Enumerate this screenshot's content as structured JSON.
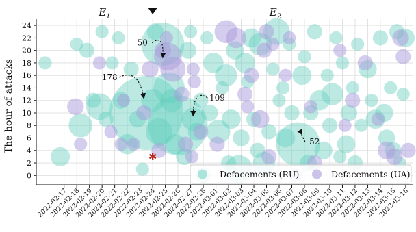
{
  "chart_data": {
    "type": "scatter",
    "ylabel": "The hour of attacks",
    "xlabel": "",
    "categories": [
      "2022-02-17",
      "2022-02-18",
      "2022-02-19",
      "2022-02-20",
      "2022-02-21",
      "2022-02-22",
      "2022-02-23",
      "2022-02-24",
      "2022-02-25",
      "2022-02-26",
      "2022-02-27",
      "2022-02-28",
      "2022-03-01",
      "2022-03-02",
      "2022-03-03",
      "2022-03-04",
      "2022-03-05",
      "2022-03-06",
      "2022-03-07",
      "2022-03-08",
      "2022-03-09",
      "2022-03-10",
      "2022-03-11",
      "2022-03-12",
      "2022-03-13",
      "2022-03-14",
      "2022-03-15",
      "2022-03-16"
    ],
    "ylim": [
      -1.5,
      25
    ],
    "yticks": [
      0,
      2,
      4,
      6,
      8,
      10,
      12,
      14,
      16,
      18,
      20,
      22,
      24
    ],
    "grid": true,
    "legend_position": "bottom-right",
    "colors": {
      "RU": "#5fcdbd",
      "UA": "#a99bdc",
      "star": "#c0271e",
      "marker": "#111111"
    },
    "series": [
      {
        "name": "Defacements (RU)",
        "color": "#5fcdbd",
        "points": [
          {
            "x": -1.5,
            "y": 18,
            "n": 1
          },
          {
            "x": -0.3,
            "y": 3,
            "n": 5
          },
          {
            "x": 1,
            "y": 21,
            "n": 1
          },
          {
            "x": 1.3,
            "y": 8,
            "n": 10
          },
          {
            "x": 1.8,
            "y": 20,
            "n": 2
          },
          {
            "x": 2.3,
            "y": 12,
            "n": 2
          },
          {
            "x": 2.8,
            "y": 11,
            "n": 14
          },
          {
            "x": 3,
            "y": 23,
            "n": 1
          },
          {
            "x": 3.3,
            "y": 9,
            "n": 2
          },
          {
            "x": 3.8,
            "y": 18,
            "n": 1
          },
          {
            "x": 4.3,
            "y": 22,
            "n": 1
          },
          {
            "x": 4.5,
            "y": 12,
            "n": 3
          },
          {
            "x": 5,
            "y": 5,
            "n": 6
          },
          {
            "x": 5.3,
            "y": 17,
            "n": 2
          },
          {
            "x": 5.8,
            "y": 9,
            "n": 3
          },
          {
            "x": 6.2,
            "y": 1,
            "n": 1
          },
          {
            "x": 6.5,
            "y": 10,
            "n": 178
          },
          {
            "x": 7,
            "y": 12,
            "n": 9
          },
          {
            "x": 7.2,
            "y": 23,
            "n": 3
          },
          {
            "x": 7.5,
            "y": 7,
            "n": 14
          },
          {
            "x": 7.8,
            "y": 21,
            "n": 50
          },
          {
            "x": 8.3,
            "y": 14,
            "n": 22
          },
          {
            "x": 8.5,
            "y": 12,
            "n": 9
          },
          {
            "x": 8.8,
            "y": 5,
            "n": 6
          },
          {
            "x": 9,
            "y": 8,
            "n": 109
          },
          {
            "x": 9.5,
            "y": 3,
            "n": 3
          },
          {
            "x": 9.8,
            "y": 20,
            "n": 3
          },
          {
            "x": 10,
            "y": 23,
            "n": 1
          },
          {
            "x": 10.2,
            "y": 9,
            "n": 9
          },
          {
            "x": 10.5,
            "y": 7,
            "n": 4
          },
          {
            "x": 10.8,
            "y": 12,
            "n": 2
          },
          {
            "x": 11,
            "y": 0,
            "n": 2
          },
          {
            "x": 11.3,
            "y": 22,
            "n": 1
          },
          {
            "x": 11.5,
            "y": 10,
            "n": 3
          },
          {
            "x": 11.8,
            "y": 18,
            "n": 6
          },
          {
            "x": 12.2,
            "y": 7,
            "n": 10
          },
          {
            "x": 12.5,
            "y": 14,
            "n": 1
          },
          {
            "x": 12.8,
            "y": 16,
            "n": 8
          },
          {
            "x": 13,
            "y": 2,
            "n": 2
          },
          {
            "x": 13.2,
            "y": 9,
            "n": 5
          },
          {
            "x": 13.5,
            "y": 20,
            "n": 4
          },
          {
            "x": 13.8,
            "y": 1,
            "n": 16
          },
          {
            "x": 14,
            "y": 6,
            "n": 3
          },
          {
            "x": 14.3,
            "y": 18,
            "n": 6
          },
          {
            "x": 14.5,
            "y": 15,
            "n": 1
          },
          {
            "x": 14.8,
            "y": 22,
            "n": 5
          },
          {
            "x": 15,
            "y": 9,
            "n": 2
          },
          {
            "x": 15.3,
            "y": 4,
            "n": 2
          },
          {
            "x": 15.5,
            "y": 21,
            "n": 9
          },
          {
            "x": 15.8,
            "y": 2,
            "n": 8
          },
          {
            "x": 16.2,
            "y": 7,
            "n": 2
          },
          {
            "x": 16.5,
            "y": 17,
            "n": 1
          },
          {
            "x": 16.8,
            "y": 23,
            "n": 14
          },
          {
            "x": 17,
            "y": 12,
            "n": 1
          },
          {
            "x": 17.3,
            "y": 14,
            "n": 1
          },
          {
            "x": 17.5,
            "y": 6,
            "n": 5
          },
          {
            "x": 17.8,
            "y": 21,
            "n": 1
          },
          {
            "x": 18,
            "y": 10,
            "n": 2
          },
          {
            "x": 18.5,
            "y": 5,
            "n": 52
          },
          {
            "x": 18.8,
            "y": 16,
            "n": 5
          },
          {
            "x": 19,
            "y": 19,
            "n": 1
          },
          {
            "x": 19.3,
            "y": 2,
            "n": 3
          },
          {
            "x": 19.5,
            "y": 10,
            "n": 2
          },
          {
            "x": 19.8,
            "y": 23,
            "n": 2
          },
          {
            "x": 20.2,
            "y": 12,
            "n": 6
          },
          {
            "x": 20.5,
            "y": 4,
            "n": 4
          },
          {
            "x": 20.8,
            "y": 16,
            "n": 1
          },
          {
            "x": 21,
            "y": 8,
            "n": 2
          },
          {
            "x": 21.2,
            "y": 13,
            "n": 8
          },
          {
            "x": 21.5,
            "y": 22,
            "n": 1
          },
          {
            "x": 21.8,
            "y": 3,
            "n": 1
          },
          {
            "x": 22,
            "y": 18,
            "n": 1
          },
          {
            "x": 22.3,
            "y": 5,
            "n": 4
          },
          {
            "x": 22.5,
            "y": 10,
            "n": 3
          },
          {
            "x": 22.8,
            "y": 14,
            "n": 1
          },
          {
            "x": 23,
            "y": 2,
            "n": 2
          },
          {
            "x": 23.2,
            "y": 21,
            "n": 1
          },
          {
            "x": 23.5,
            "y": 8,
            "n": 1
          },
          {
            "x": 24,
            "y": 17,
            "n": 4
          },
          {
            "x": 24.3,
            "y": 12,
            "n": 1
          },
          {
            "x": 24.6,
            "y": 9,
            "n": 5
          },
          {
            "x": 25,
            "y": 22,
            "n": 2
          },
          {
            "x": 25.3,
            "y": 10,
            "n": 4
          },
          {
            "x": 25.5,
            "y": 6,
            "n": 3
          },
          {
            "x": 25.8,
            "y": 14,
            "n": 1
          },
          {
            "x": 26,
            "y": 4,
            "n": 3
          },
          {
            "x": 26.3,
            "y": 23,
            "n": 2
          },
          {
            "x": 26.5,
            "y": 2,
            "n": 1
          },
          {
            "x": 26.8,
            "y": 13,
            "n": 1
          },
          {
            "x": 27,
            "y": 22,
            "n": 4
          }
        ]
      },
      {
        "name": "Defacements (UA)",
        "color": "#a99bdc",
        "points": [
          {
            "x": 0.9,
            "y": 11,
            "n": 3
          },
          {
            "x": 1.3,
            "y": 5,
            "n": 1
          },
          {
            "x": 2.8,
            "y": 18,
            "n": 1
          },
          {
            "x": 3.7,
            "y": 7,
            "n": 1
          },
          {
            "x": 4.5,
            "y": 5,
            "n": 1
          },
          {
            "x": 4.7,
            "y": 12,
            "n": 1
          },
          {
            "x": 5.5,
            "y": 5,
            "n": 1
          },
          {
            "x": 6.3,
            "y": 10,
            "n": 2
          },
          {
            "x": 6.8,
            "y": 17,
            "n": 3
          },
          {
            "x": 7.5,
            "y": 4,
            "n": 2
          },
          {
            "x": 7.8,
            "y": 20,
            "n": 3
          },
          {
            "x": 8.1,
            "y": 22,
            "n": 1
          },
          {
            "x": 8.2,
            "y": 19,
            "n": 16
          },
          {
            "x": 8.6,
            "y": 17,
            "n": 12
          },
          {
            "x": 9.3,
            "y": 13,
            "n": 2
          },
          {
            "x": 9.6,
            "y": 5,
            "n": 2
          },
          {
            "x": 10.1,
            "y": 3,
            "n": 1
          },
          {
            "x": 10.2,
            "y": 17,
            "n": 1
          },
          {
            "x": 10.3,
            "y": 15,
            "n": 1
          },
          {
            "x": 10.8,
            "y": 7,
            "n": 2
          },
          {
            "x": 12.1,
            "y": 5,
            "n": 2
          },
          {
            "x": 12.8,
            "y": 23,
            "n": 9
          },
          {
            "x": 13.6,
            "y": 22,
            "n": 6
          },
          {
            "x": 14.3,
            "y": 13,
            "n": 2
          },
          {
            "x": 14.5,
            "y": 11,
            "n": 1
          },
          {
            "x": 14.8,
            "y": 16,
            "n": 2
          },
          {
            "x": 15.5,
            "y": 9,
            "n": 4
          },
          {
            "x": 15.8,
            "y": 20,
            "n": 2
          },
          {
            "x": 16.0,
            "y": 23,
            "n": 2
          },
          {
            "x": 16.2,
            "y": 3,
            "n": 2
          },
          {
            "x": 16.5,
            "y": 21,
            "n": 1
          },
          {
            "x": 17.5,
            "y": 16,
            "n": 1
          },
          {
            "x": 17.8,
            "y": 22,
            "n": 1
          },
          {
            "x": 18.3,
            "y": 0,
            "n": 1
          },
          {
            "x": 19.5,
            "y": 11,
            "n": 1
          },
          {
            "x": 19.8,
            "y": 2,
            "n": 2
          },
          {
            "x": 21.8,
            "y": 20,
            "n": 1
          },
          {
            "x": 22.2,
            "y": 8,
            "n": 1
          },
          {
            "x": 22.8,
            "y": 12,
            "n": 2
          },
          {
            "x": 23.8,
            "y": 18,
            "n": 2
          },
          {
            "x": 24.8,
            "y": 9,
            "n": 1
          },
          {
            "x": 25.5,
            "y": 4,
            "n": 4
          },
          {
            "x": 26.1,
            "y": 3,
            "n": 3
          },
          {
            "x": 26.6,
            "y": 22,
            "n": 3
          },
          {
            "x": 26.8,
            "y": 19,
            "n": 2
          },
          {
            "x": 27.2,
            "y": 4,
            "n": 2
          }
        ]
      }
    ],
    "annotations": [
      {
        "text": "178",
        "target": {
          "x": 6.3,
          "y": 12.4
        },
        "label_at": {
          "x": 3.6,
          "y": 15.7
        }
      },
      {
        "text": "50",
        "target": {
          "x": 7.8,
          "y": 18.9
        },
        "label_at": {
          "x": 6.2,
          "y": 21.2
        }
      },
      {
        "text": "109",
        "target": {
          "x": 10.2,
          "y": 9.6
        },
        "label_at": {
          "x": 12.1,
          "y": 12.4
        }
      },
      {
        "text": "52",
        "target": {
          "x": 18.8,
          "y": 6.6
        },
        "label_at": {
          "x": 19.8,
          "y": 5.4
        }
      }
    ],
    "events": [
      {
        "label_base": "E",
        "label_sub": "1",
        "x": 3.2
      },
      {
        "label_base": "E",
        "label_sub": "2",
        "x": 16.7
      }
    ],
    "event_marker": {
      "x": 7.0
    },
    "star": {
      "x": 7.0,
      "y": 3
    },
    "legend": {
      "ru_label": "Defacements (RU)",
      "ua_label": "Defacements (UA)"
    }
  }
}
